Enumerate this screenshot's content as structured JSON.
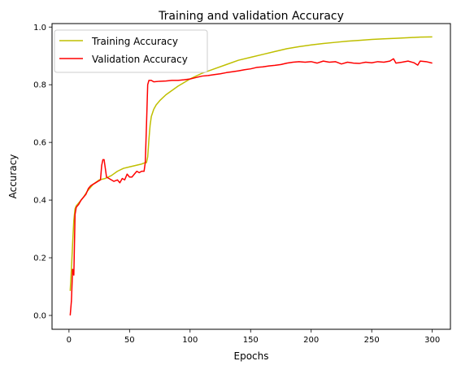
{
  "chart_data": {
    "type": "line",
    "title": "Training and validation Accuracy",
    "xlabel": "Epochs",
    "ylabel": "Accuracy",
    "xlim": [
      -14,
      315
    ],
    "ylim": [
      -0.048,
      1.012
    ],
    "xticks": [
      0,
      50,
      100,
      150,
      200,
      250,
      300
    ],
    "yticks": [
      0.0,
      0.2,
      0.4,
      0.6,
      0.8,
      1.0
    ],
    "xtick_labels": [
      "0",
      "50",
      "100",
      "150",
      "200",
      "250",
      "300"
    ],
    "ytick_labels": [
      "0.0",
      "0.2",
      "0.4",
      "0.6",
      "0.8",
      "1.0"
    ],
    "grid": false,
    "legend_position": "top-left",
    "series": [
      {
        "name": "Training Accuracy",
        "color": "#bfbf00",
        "x": [
          1,
          2,
          3,
          4,
          5,
          6,
          8,
          10,
          12,
          15,
          18,
          20,
          25,
          30,
          35,
          40,
          45,
          50,
          55,
          60,
          63,
          64,
          65,
          66,
          67,
          68,
          70,
          72,
          75,
          80,
          90,
          100,
          110,
          120,
          130,
          140,
          150,
          160,
          170,
          180,
          190,
          200,
          210,
          220,
          230,
          240,
          250,
          260,
          270,
          280,
          290,
          300
        ],
        "y": [
          0.085,
          0.16,
          0.25,
          0.33,
          0.37,
          0.38,
          0.39,
          0.4,
          0.41,
          0.43,
          0.445,
          0.455,
          0.47,
          0.475,
          0.485,
          0.5,
          0.51,
          0.515,
          0.52,
          0.525,
          0.53,
          0.53,
          0.55,
          0.61,
          0.66,
          0.69,
          0.715,
          0.73,
          0.745,
          0.765,
          0.795,
          0.82,
          0.84,
          0.855,
          0.87,
          0.885,
          0.895,
          0.905,
          0.915,
          0.925,
          0.932,
          0.938,
          0.943,
          0.947,
          0.951,
          0.954,
          0.957,
          0.959,
          0.961,
          0.963,
          0.965,
          0.966
        ]
      },
      {
        "name": "Validation Accuracy",
        "color": "#ff0000",
        "x": [
          1,
          2,
          3,
          4,
          5,
          6,
          8,
          10,
          12,
          14,
          16,
          18,
          20,
          22,
          24,
          26,
          27,
          28,
          29,
          30,
          31,
          33,
          35,
          37,
          40,
          42,
          44,
          46,
          48,
          50,
          52,
          54,
          56,
          58,
          60,
          62,
          63,
          64,
          65,
          66,
          68,
          70,
          75,
          80,
          85,
          90,
          95,
          100,
          105,
          110,
          115,
          120,
          125,
          130,
          135,
          140,
          145,
          150,
          155,
          160,
          165,
          170,
          175,
          180,
          185,
          190,
          195,
          200,
          205,
          210,
          215,
          220,
          225,
          230,
          235,
          240,
          245,
          250,
          255,
          260,
          265,
          268,
          270,
          275,
          280,
          285,
          288,
          290,
          295,
          300
        ],
        "y": [
          0.0,
          0.05,
          0.16,
          0.14,
          0.35,
          0.375,
          0.385,
          0.4,
          0.41,
          0.42,
          0.44,
          0.45,
          0.455,
          0.46,
          0.465,
          0.47,
          0.52,
          0.54,
          0.54,
          0.51,
          0.48,
          0.475,
          0.47,
          0.465,
          0.47,
          0.46,
          0.475,
          0.47,
          0.49,
          0.48,
          0.48,
          0.49,
          0.5,
          0.495,
          0.5,
          0.5,
          0.53,
          0.66,
          0.8,
          0.815,
          0.815,
          0.81,
          0.812,
          0.813,
          0.815,
          0.815,
          0.817,
          0.82,
          0.825,
          0.83,
          0.832,
          0.835,
          0.838,
          0.842,
          0.845,
          0.848,
          0.852,
          0.855,
          0.86,
          0.862,
          0.865,
          0.867,
          0.87,
          0.875,
          0.878,
          0.88,
          0.878,
          0.88,
          0.875,
          0.882,
          0.878,
          0.88,
          0.872,
          0.878,
          0.875,
          0.874,
          0.878,
          0.876,
          0.88,
          0.878,
          0.882,
          0.89,
          0.875,
          0.878,
          0.882,
          0.876,
          0.868,
          0.882,
          0.88,
          0.875
        ]
      }
    ]
  }
}
